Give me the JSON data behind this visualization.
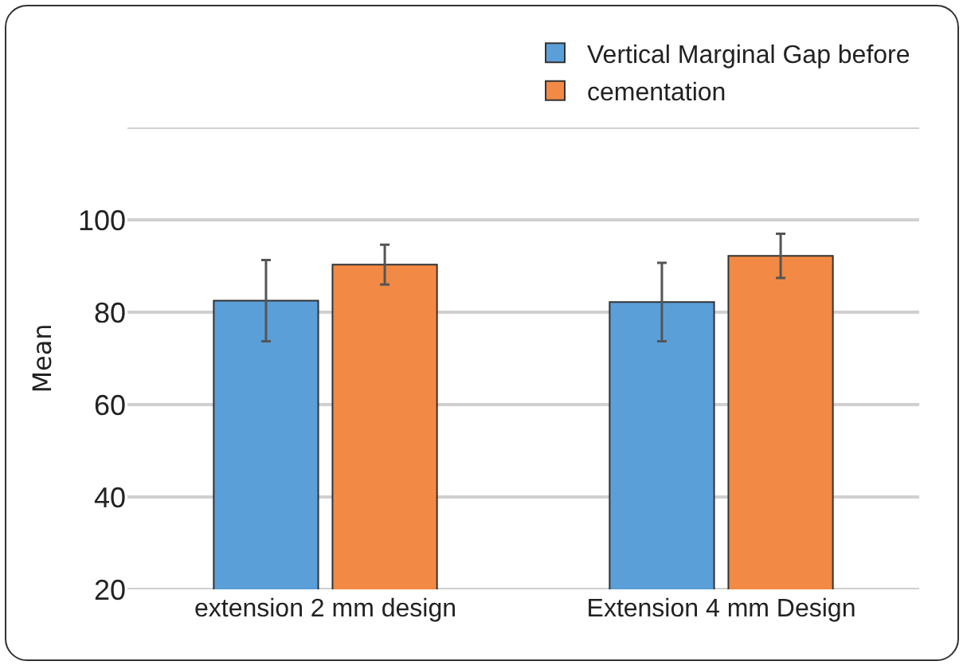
{
  "chart_data": {
    "type": "bar",
    "ylabel": "Mean",
    "categories": [
      "extension 2 mm design",
      "Extension 4 mm Design"
    ],
    "series": [
      {
        "name": "Vertical Marginal Gap before",
        "color": "#5b9fd8",
        "values": [
          82.5,
          82.2
        ],
        "errors": [
          8.8,
          8.5
        ]
      },
      {
        "name": "cementation",
        "color": "#f28a45",
        "values": [
          90.3,
          92.2
        ],
        "errors": [
          4.3,
          4.8
        ]
      }
    ],
    "ylim": [
      20,
      120
    ],
    "yticks": [
      20,
      40,
      60,
      80,
      100,
      {
        "value": 120,
        "label": null
      }
    ],
    "grid": "y",
    "legend": "top right"
  }
}
